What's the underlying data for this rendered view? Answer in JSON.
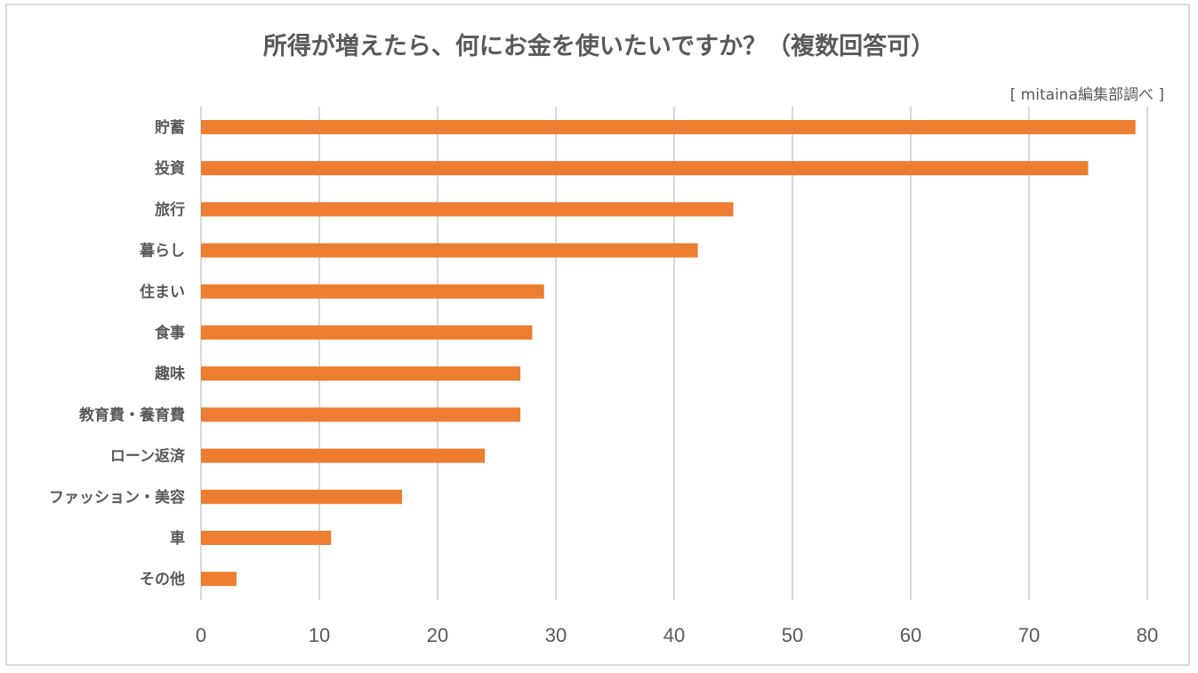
{
  "chart_data": {
    "type": "bar",
    "orientation": "horizontal",
    "title": "所得が増えたら、何にお金を使いたいですか？（複数回答可）",
    "subtitle": "[ mitaina編集部調べ ]",
    "categories": [
      "貯蓄",
      "投資",
      "旅行",
      "暮らし",
      "住まい",
      "食事",
      "趣味",
      "教育費・養育費",
      "ローン返済",
      "ファッション・美容",
      "車",
      "その他"
    ],
    "values": [
      79,
      75,
      45,
      42,
      29,
      28,
      27,
      27,
      24,
      17,
      11,
      3
    ],
    "xlim": [
      0,
      80
    ],
    "xticks": [
      0,
      10,
      20,
      30,
      40,
      50,
      60,
      70,
      80
    ],
    "grid": true,
    "legend": "none",
    "colors": {
      "bar": "#ED7D31",
      "grid": "#d9d9d9",
      "text": "#595959"
    }
  }
}
